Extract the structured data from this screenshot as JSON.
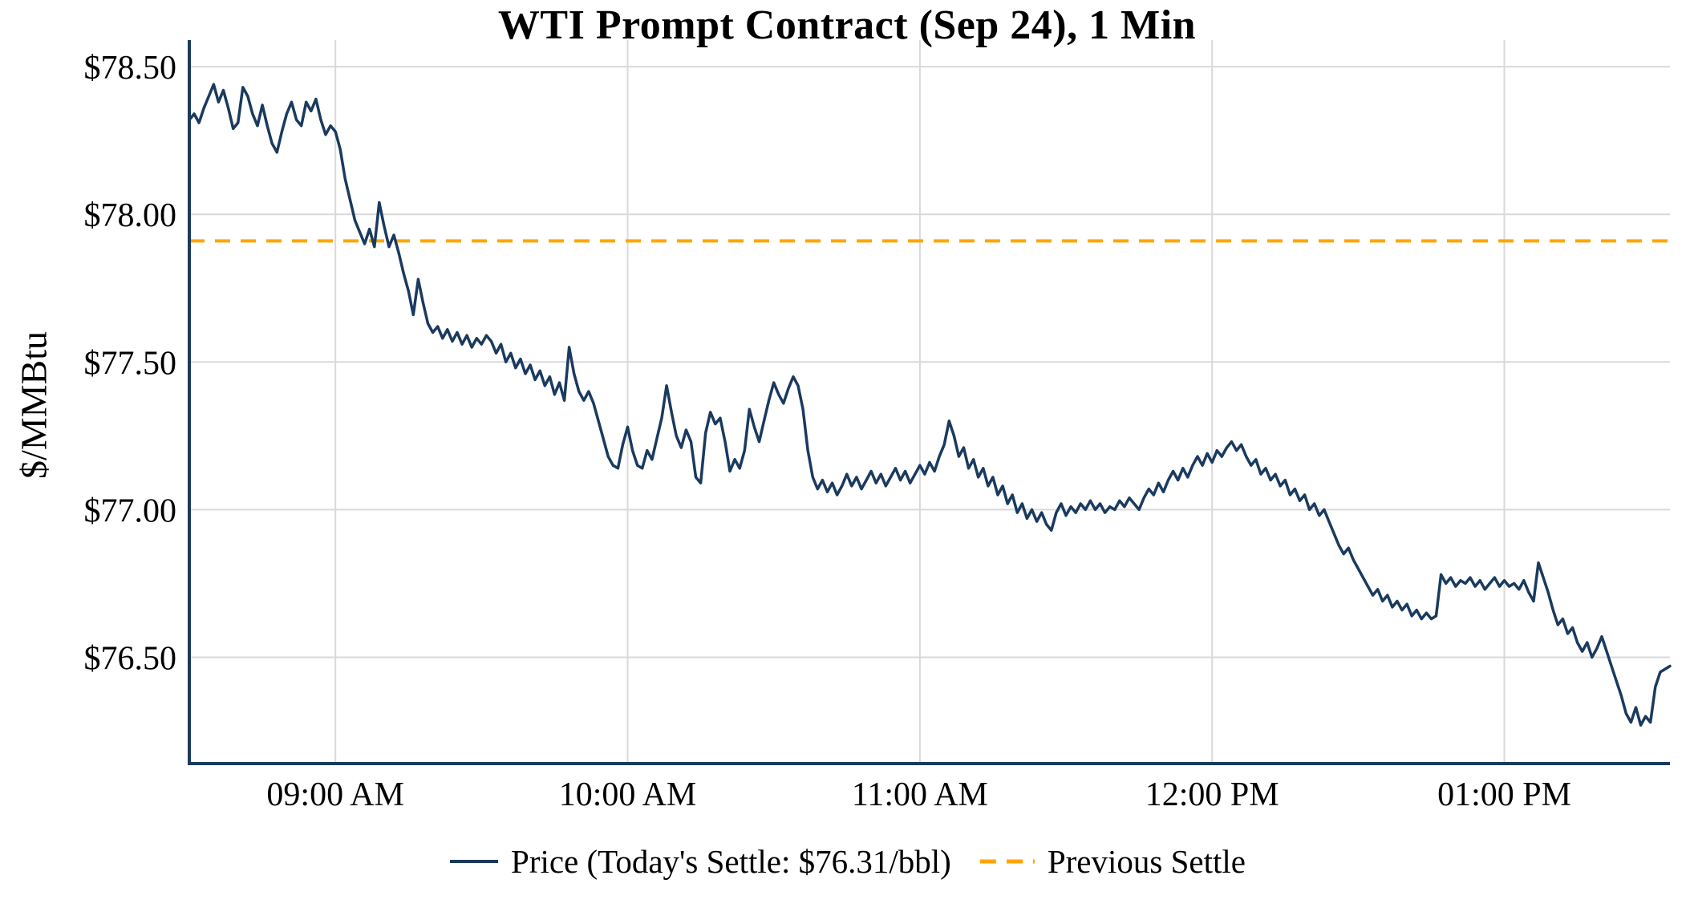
{
  "colors": {
    "background": "#ffffff",
    "price_line": "#1a3a5f",
    "previous_settle_line": "#FFA500",
    "grid": "#d9d9d9",
    "axis": "#1a3a5f",
    "text": "#000000"
  },
  "chart_data": {
    "type": "line",
    "title": "WTI Prompt Contract (Sep 24), 1 Min",
    "xlabel": "",
    "ylabel": "$/MMBtu",
    "x_unit": "minutes since 08:30 AM",
    "x_range": [
      0,
      304
    ],
    "y_range": [
      76.14,
      78.59
    ],
    "grid": true,
    "legend_position": "bottom",
    "y_ticks": [
      {
        "value": 78.5,
        "label": "$78.50"
      },
      {
        "value": 78.0,
        "label": "$78.00"
      },
      {
        "value": 77.5,
        "label": "$77.50"
      },
      {
        "value": 77.0,
        "label": "$77.00"
      },
      {
        "value": 76.5,
        "label": "$76.50"
      }
    ],
    "x_ticks": [
      {
        "value": 30,
        "label": "09:00 AM"
      },
      {
        "value": 90,
        "label": "10:00 AM"
      },
      {
        "value": 150,
        "label": "11:00 AM"
      },
      {
        "value": 210,
        "label": "12:00 PM"
      },
      {
        "value": 270,
        "label": "01:00 PM"
      }
    ],
    "annotations": {
      "todays_settle": 76.31,
      "previous_settle": 77.91
    },
    "series": [
      {
        "name": "Price (Today's Settle: $76.31/bbl)",
        "type": "line",
        "style": "solid",
        "color": "#1a3a5f",
        "points": [
          [
            0,
            78.32
          ],
          [
            1,
            78.34
          ],
          [
            2,
            78.31
          ],
          [
            3,
            78.36
          ],
          [
            4,
            78.4
          ],
          [
            5,
            78.44
          ],
          [
            6,
            78.38
          ],
          [
            7,
            78.42
          ],
          [
            8,
            78.36
          ],
          [
            9,
            78.29
          ],
          [
            10,
            78.31
          ],
          [
            11,
            78.43
          ],
          [
            12,
            78.4
          ],
          [
            13,
            78.34
          ],
          [
            14,
            78.3
          ],
          [
            15,
            78.37
          ],
          [
            16,
            78.3
          ],
          [
            17,
            78.24
          ],
          [
            18,
            78.21
          ],
          [
            19,
            78.28
          ],
          [
            20,
            78.34
          ],
          [
            21,
            78.38
          ],
          [
            22,
            78.32
          ],
          [
            23,
            78.3
          ],
          [
            24,
            78.38
          ],
          [
            25,
            78.35
          ],
          [
            26,
            78.39
          ],
          [
            27,
            78.32
          ],
          [
            28,
            78.27
          ],
          [
            29,
            78.3
          ],
          [
            30,
            78.28
          ],
          [
            31,
            78.22
          ],
          [
            32,
            78.12
          ],
          [
            33,
            78.05
          ],
          [
            34,
            77.98
          ],
          [
            35,
            77.94
          ],
          [
            36,
            77.9
          ],
          [
            37,
            77.95
          ],
          [
            38,
            77.89
          ],
          [
            39,
            78.04
          ],
          [
            40,
            77.96
          ],
          [
            41,
            77.89
          ],
          [
            42,
            77.93
          ],
          [
            43,
            77.87
          ],
          [
            44,
            77.8
          ],
          [
            45,
            77.74
          ],
          [
            46,
            77.66
          ],
          [
            47,
            77.78
          ],
          [
            48,
            77.7
          ],
          [
            49,
            77.63
          ],
          [
            50,
            77.6
          ],
          [
            51,
            77.62
          ],
          [
            52,
            77.58
          ],
          [
            53,
            77.61
          ],
          [
            54,
            77.57
          ],
          [
            55,
            77.6
          ],
          [
            56,
            77.56
          ],
          [
            57,
            77.59
          ],
          [
            58,
            77.55
          ],
          [
            59,
            77.58
          ],
          [
            60,
            77.56
          ],
          [
            61,
            77.59
          ],
          [
            62,
            77.57
          ],
          [
            63,
            77.53
          ],
          [
            64,
            77.56
          ],
          [
            65,
            77.5
          ],
          [
            66,
            77.53
          ],
          [
            67,
            77.48
          ],
          [
            68,
            77.51
          ],
          [
            69,
            77.46
          ],
          [
            70,
            77.49
          ],
          [
            71,
            77.44
          ],
          [
            72,
            77.47
          ],
          [
            73,
            77.42
          ],
          [
            74,
            77.45
          ],
          [
            75,
            77.39
          ],
          [
            76,
            77.43
          ],
          [
            77,
            77.37
          ],
          [
            78,
            77.55
          ],
          [
            79,
            77.46
          ],
          [
            80,
            77.4
          ],
          [
            81,
            77.37
          ],
          [
            82,
            77.4
          ],
          [
            83,
            77.36
          ],
          [
            84,
            77.3
          ],
          [
            85,
            77.24
          ],
          [
            86,
            77.18
          ],
          [
            87,
            77.15
          ],
          [
            88,
            77.14
          ],
          [
            89,
            77.22
          ],
          [
            90,
            77.28
          ],
          [
            91,
            77.2
          ],
          [
            92,
            77.15
          ],
          [
            93,
            77.14
          ],
          [
            94,
            77.2
          ],
          [
            95,
            77.17
          ],
          [
            96,
            77.24
          ],
          [
            97,
            77.31
          ],
          [
            98,
            77.42
          ],
          [
            99,
            77.33
          ],
          [
            100,
            77.25
          ],
          [
            101,
            77.21
          ],
          [
            102,
            77.27
          ],
          [
            103,
            77.23
          ],
          [
            104,
            77.11
          ],
          [
            105,
            77.09
          ],
          [
            106,
            77.26
          ],
          [
            107,
            77.33
          ],
          [
            108,
            77.29
          ],
          [
            109,
            77.31
          ],
          [
            110,
            77.23
          ],
          [
            111,
            77.13
          ],
          [
            112,
            77.17
          ],
          [
            113,
            77.14
          ],
          [
            114,
            77.2
          ],
          [
            115,
            77.34
          ],
          [
            116,
            77.28
          ],
          [
            117,
            77.23
          ],
          [
            118,
            77.3
          ],
          [
            119,
            77.37
          ],
          [
            120,
            77.43
          ],
          [
            121,
            77.39
          ],
          [
            122,
            77.36
          ],
          [
            123,
            77.41
          ],
          [
            124,
            77.45
          ],
          [
            125,
            77.42
          ],
          [
            126,
            77.34
          ],
          [
            127,
            77.2
          ],
          [
            128,
            77.11
          ],
          [
            129,
            77.07
          ],
          [
            130,
            77.1
          ],
          [
            131,
            77.06
          ],
          [
            132,
            77.09
          ],
          [
            133,
            77.05
          ],
          [
            134,
            77.08
          ],
          [
            135,
            77.12
          ],
          [
            136,
            77.08
          ],
          [
            137,
            77.11
          ],
          [
            138,
            77.07
          ],
          [
            139,
            77.1
          ],
          [
            140,
            77.13
          ],
          [
            141,
            77.09
          ],
          [
            142,
            77.12
          ],
          [
            143,
            77.08
          ],
          [
            144,
            77.11
          ],
          [
            145,
            77.14
          ],
          [
            146,
            77.1
          ],
          [
            147,
            77.13
          ],
          [
            148,
            77.09
          ],
          [
            149,
            77.12
          ],
          [
            150,
            77.15
          ],
          [
            151,
            77.12
          ],
          [
            152,
            77.16
          ],
          [
            153,
            77.13
          ],
          [
            154,
            77.18
          ],
          [
            155,
            77.22
          ],
          [
            156,
            77.3
          ],
          [
            157,
            77.25
          ],
          [
            158,
            77.18
          ],
          [
            159,
            77.21
          ],
          [
            160,
            77.14
          ],
          [
            161,
            77.17
          ],
          [
            162,
            77.11
          ],
          [
            163,
            77.14
          ],
          [
            164,
            77.08
          ],
          [
            165,
            77.11
          ],
          [
            166,
            77.05
          ],
          [
            167,
            77.08
          ],
          [
            168,
            77.02
          ],
          [
            169,
            77.05
          ],
          [
            170,
            76.99
          ],
          [
            171,
            77.02
          ],
          [
            172,
            76.97
          ],
          [
            173,
            77.0
          ],
          [
            174,
            76.96
          ],
          [
            175,
            76.99
          ],
          [
            176,
            76.95
          ],
          [
            177,
            76.93
          ],
          [
            178,
            76.99
          ],
          [
            179,
            77.02
          ],
          [
            180,
            76.98
          ],
          [
            181,
            77.01
          ],
          [
            182,
            76.99
          ],
          [
            183,
            77.02
          ],
          [
            184,
            77.0
          ],
          [
            185,
            77.03
          ],
          [
            186,
            77.0
          ],
          [
            187,
            77.02
          ],
          [
            188,
            76.99
          ],
          [
            189,
            77.01
          ],
          [
            190,
            77.0
          ],
          [
            191,
            77.03
          ],
          [
            192,
            77.01
          ],
          [
            193,
            77.04
          ],
          [
            194,
            77.02
          ],
          [
            195,
            77.0
          ],
          [
            196,
            77.04
          ],
          [
            197,
            77.07
          ],
          [
            198,
            77.05
          ],
          [
            199,
            77.09
          ],
          [
            200,
            77.06
          ],
          [
            201,
            77.1
          ],
          [
            202,
            77.13
          ],
          [
            203,
            77.1
          ],
          [
            204,
            77.14
          ],
          [
            205,
            77.11
          ],
          [
            206,
            77.15
          ],
          [
            207,
            77.18
          ],
          [
            208,
            77.15
          ],
          [
            209,
            77.19
          ],
          [
            210,
            77.16
          ],
          [
            211,
            77.2
          ],
          [
            212,
            77.18
          ],
          [
            213,
            77.21
          ],
          [
            214,
            77.23
          ],
          [
            215,
            77.2
          ],
          [
            216,
            77.22
          ],
          [
            217,
            77.18
          ],
          [
            218,
            77.15
          ],
          [
            219,
            77.17
          ],
          [
            220,
            77.12
          ],
          [
            221,
            77.14
          ],
          [
            222,
            77.1
          ],
          [
            223,
            77.12
          ],
          [
            224,
            77.08
          ],
          [
            225,
            77.1
          ],
          [
            226,
            77.05
          ],
          [
            227,
            77.07
          ],
          [
            228,
            77.03
          ],
          [
            229,
            77.05
          ],
          [
            230,
            77.0
          ],
          [
            231,
            77.02
          ],
          [
            232,
            76.98
          ],
          [
            233,
            77.0
          ],
          [
            234,
            76.96
          ],
          [
            235,
            76.92
          ],
          [
            236,
            76.88
          ],
          [
            237,
            76.85
          ],
          [
            238,
            76.87
          ],
          [
            239,
            76.83
          ],
          [
            240,
            76.8
          ],
          [
            241,
            76.77
          ],
          [
            242,
            76.74
          ],
          [
            243,
            76.71
          ],
          [
            244,
            76.73
          ],
          [
            245,
            76.69
          ],
          [
            246,
            76.71
          ],
          [
            247,
            76.67
          ],
          [
            248,
            76.69
          ],
          [
            249,
            76.66
          ],
          [
            250,
            76.68
          ],
          [
            251,
            76.64
          ],
          [
            252,
            76.66
          ],
          [
            253,
            76.63
          ],
          [
            254,
            76.65
          ],
          [
            255,
            76.63
          ],
          [
            256,
            76.64
          ],
          [
            257,
            76.78
          ],
          [
            258,
            76.75
          ],
          [
            259,
            76.77
          ],
          [
            260,
            76.74
          ],
          [
            261,
            76.76
          ],
          [
            262,
            76.75
          ],
          [
            263,
            76.77
          ],
          [
            264,
            76.74
          ],
          [
            265,
            76.76
          ],
          [
            266,
            76.73
          ],
          [
            267,
            76.75
          ],
          [
            268,
            76.77
          ],
          [
            269,
            76.74
          ],
          [
            270,
            76.76
          ],
          [
            271,
            76.74
          ],
          [
            272,
            76.75
          ],
          [
            273,
            76.73
          ],
          [
            274,
            76.76
          ],
          [
            275,
            76.72
          ],
          [
            276,
            76.69
          ],
          [
            277,
            76.82
          ],
          [
            278,
            76.77
          ],
          [
            279,
            76.72
          ],
          [
            280,
            76.66
          ],
          [
            281,
            76.61
          ],
          [
            282,
            76.63
          ],
          [
            283,
            76.58
          ],
          [
            284,
            76.6
          ],
          [
            285,
            76.55
          ],
          [
            286,
            76.52
          ],
          [
            287,
            76.55
          ],
          [
            288,
            76.5
          ],
          [
            289,
            76.53
          ],
          [
            290,
            76.57
          ],
          [
            291,
            76.52
          ],
          [
            292,
            76.47
          ],
          [
            293,
            76.42
          ],
          [
            294,
            76.37
          ],
          [
            295,
            76.31
          ],
          [
            296,
            76.28
          ],
          [
            297,
            76.33
          ],
          [
            298,
            76.27
          ],
          [
            299,
            76.3
          ],
          [
            300,
            76.28
          ],
          [
            301,
            76.4
          ],
          [
            302,
            76.45
          ],
          [
            303,
            76.46
          ],
          [
            304,
            76.47
          ]
        ]
      },
      {
        "name": "Previous Settle",
        "type": "hline",
        "style": "dashed",
        "color": "#FFA500",
        "value": 77.91
      }
    ]
  },
  "legend": {
    "price_label": "Price (Today's Settle: $76.31/bbl)",
    "previous_settle_label": "Previous Settle"
  }
}
